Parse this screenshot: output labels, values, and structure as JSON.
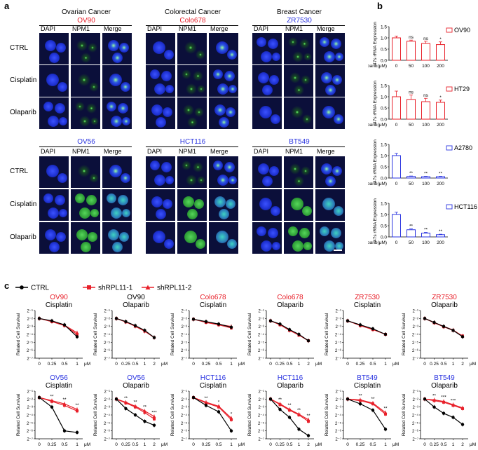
{
  "panels": {
    "a": "a",
    "b": "b",
    "c": "c"
  },
  "micro": {
    "col_headers": [
      "DAPI",
      "NPM1",
      "Merge"
    ],
    "top_groups": [
      {
        "cancer": "Ovarian Cancer",
        "line": "OV90",
        "color": "#e8202a"
      },
      {
        "cancer": "Colorectal Cancer",
        "line": "Colo678",
        "color": "#e8202a"
      },
      {
        "cancer": "Breast Cancer",
        "line": "ZR7530",
        "color": "#2a34e0"
      }
    ],
    "bottom_groups": [
      {
        "line": "OV56",
        "color": "#2a34e0"
      },
      {
        "line": "HCT116",
        "color": "#2a34e0"
      },
      {
        "line": "BT549",
        "color": "#2a34e0"
      }
    ],
    "rows": [
      "CTRL",
      "Cisplatin",
      "Olaparib"
    ]
  },
  "panel_b": {
    "ylabel": "47s rRNA Expression",
    "xlabel": "Olaparib(μM)",
    "categories": [
      "0",
      "50",
      "100",
      "200"
    ],
    "charts": [
      {
        "line": "OV90",
        "color": "#e8202a",
        "values": [
          1.0,
          0.85,
          0.75,
          0.7
        ],
        "errors": [
          0.08,
          0.05,
          0.1,
          0.12
        ],
        "sig": [
          "",
          "ns",
          "ns",
          "*"
        ]
      },
      {
        "line": "HT29",
        "color": "#e8202a",
        "values": [
          1.0,
          0.88,
          0.78,
          0.75
        ],
        "errors": [
          0.25,
          0.2,
          0.15,
          0.1
        ],
        "sig": [
          "",
          "ns",
          "ns",
          "*"
        ]
      },
      {
        "line": "A2780",
        "color": "#2a34e0",
        "values": [
          1.0,
          0.07,
          0.06,
          0.06
        ],
        "errors": [
          0.1,
          0.02,
          0.02,
          0.02
        ],
        "sig": [
          "",
          "**",
          "**",
          "**"
        ]
      },
      {
        "line": "HCT116",
        "color": "#2a34e0",
        "values": [
          1.0,
          0.32,
          0.17,
          0.1
        ],
        "errors": [
          0.1,
          0.04,
          0.03,
          0.02
        ],
        "sig": [
          "",
          "**",
          "**",
          "**"
        ]
      }
    ],
    "yticks": [
      "0.0",
      "0.5",
      "1.0",
      "1.5"
    ]
  },
  "panel_c": {
    "legend": [
      {
        "name": "CTRL",
        "color": "#000000",
        "marker": "circle"
      },
      {
        "name": "shRPL11-1",
        "color": "#e8202a",
        "marker": "square"
      },
      {
        "name": "shRPL11-2",
        "color": "#e8202a",
        "marker": "triangle"
      }
    ],
    "ylabel": "Related Cell Survival",
    "unit": "μM",
    "yticks": [
      "2⁻¹",
      "2⁻²",
      "2⁻³",
      "2⁻⁴",
      "2⁻⁵",
      "2⁻⁶",
      "2⁻⁷"
    ],
    "cis_x": [
      "0",
      "0.25",
      "0.5",
      "1"
    ],
    "ola_x": [
      "0",
      "0.25",
      "0.5",
      "1",
      "2"
    ],
    "plots": [
      {
        "line": "OV90",
        "drug": "Cisplatin",
        "color": "#e8202a",
        "x": "cis",
        "ctrl": [
          -2.0,
          -2.3,
          -2.8,
          -4.3
        ],
        "sh1": [
          -2.0,
          -2.4,
          -2.9,
          -4.0
        ],
        "sh2": [
          -2.0,
          -2.35,
          -2.85,
          -3.8
        ],
        "sig": []
      },
      {
        "line": "OV90",
        "drug": "Olaparib",
        "color": "#000000",
        "x": "ola",
        "ctrl": [
          -2.0,
          -2.4,
          -2.9,
          -3.5,
          -4.4
        ],
        "sh1": [
          -2.0,
          -2.45,
          -2.95,
          -3.6,
          -4.4
        ],
        "sh2": [
          -2.0,
          -2.4,
          -3.0,
          -3.6,
          -4.4
        ],
        "sig": []
      },
      {
        "line": "Colo678",
        "drug": "Cisplatin",
        "color": "#e8202a",
        "x": "cis",
        "ctrl": [
          -2.1,
          -2.4,
          -2.7,
          -3.1
        ],
        "sh1": [
          -2.1,
          -2.5,
          -2.8,
          -3.2
        ],
        "sh2": [
          -2.1,
          -2.45,
          -2.75,
          -3.0
        ],
        "sig": []
      },
      {
        "line": "Colo678",
        "drug": "Olaparib",
        "color": "#e8202a",
        "x": "ola",
        "ctrl": [
          -2.3,
          -2.7,
          -3.4,
          -4.0,
          -4.8
        ],
        "sh1": [
          -2.3,
          -2.8,
          -3.5,
          -4.1,
          -4.8
        ],
        "sh2": [
          -2.3,
          -2.75,
          -3.45,
          -4.05,
          -4.8
        ],
        "sig": []
      },
      {
        "line": "ZR7530",
        "drug": "Cisplatin",
        "color": "#e8202a",
        "x": "cis",
        "ctrl": [
          -2.3,
          -2.8,
          -3.3,
          -4.0
        ],
        "sh1": [
          -2.3,
          -2.9,
          -3.4,
          -4.0
        ],
        "sh2": [
          -2.3,
          -2.85,
          -3.35,
          -4.0
        ],
        "sig": []
      },
      {
        "line": "ZR7530",
        "drug": "Olaparib",
        "color": "#e8202a",
        "x": "ola",
        "ctrl": [
          -2.0,
          -2.5,
          -3.0,
          -3.5,
          -4.3
        ],
        "sh1": [
          -2.0,
          -2.55,
          -3.05,
          -3.5,
          -4.2
        ],
        "sh2": [
          -2.0,
          -2.5,
          -3.0,
          -3.45,
          -4.25
        ],
        "sig": []
      },
      {
        "line": "OV56",
        "drug": "Cisplatin",
        "color": "#2a34e0",
        "x": "cis",
        "ctrl": [
          -1.8,
          -3.0,
          -6.0,
          -6.2
        ],
        "sh1": [
          -1.8,
          -2.3,
          -2.8,
          -3.5
        ],
        "sh2": [
          -1.8,
          -2.2,
          -2.6,
          -3.3
        ],
        "sig": [
          "**",
          "**",
          "**"
        ]
      },
      {
        "line": "OV56",
        "drug": "Olaparib",
        "color": "#2a34e0",
        "x": "ola",
        "ctrl": [
          -2.0,
          -3.2,
          -4.0,
          -4.8,
          -5.3
        ],
        "sh1": [
          -2.0,
          -2.5,
          -3.0,
          -3.7,
          -4.5
        ],
        "sh2": [
          -2.0,
          -2.4,
          -2.9,
          -3.5,
          -4.2
        ],
        "sig": [
          "**",
          "**",
          "**",
          "***"
        ]
      },
      {
        "line": "HCT116",
        "drug": "Cisplatin",
        "color": "#2a34e0",
        "x": "cis",
        "ctrl": [
          -1.8,
          -2.8,
          -3.6,
          -6.0
        ],
        "sh1": [
          -1.8,
          -2.5,
          -3.0,
          -4.6
        ],
        "sh2": [
          -1.8,
          -2.4,
          -2.9,
          -4.4
        ],
        "sig": [
          "**",
          "*",
          "*"
        ]
      },
      {
        "line": "HCT116",
        "drug": "Olaparib",
        "color": "#2a34e0",
        "x": "ola",
        "ctrl": [
          -2.0,
          -3.3,
          -4.3,
          -5.8,
          -6.6
        ],
        "sh1": [
          -2.0,
          -2.7,
          -3.4,
          -4.0,
          -4.8
        ],
        "sh2": [
          -2.0,
          -2.6,
          -3.3,
          -3.9,
          -4.6
        ],
        "sig": [
          "**",
          "**",
          "**",
          "**"
        ]
      },
      {
        "line": "BT549",
        "drug": "Cisplatin",
        "color": "#2a34e0",
        "x": "cis",
        "ctrl": [
          -2.0,
          -2.6,
          -3.4,
          -5.8
        ],
        "sh1": [
          -2.0,
          -2.2,
          -2.6,
          -3.9
        ],
        "sh2": [
          -2.0,
          -2.1,
          -2.5,
          -3.7
        ],
        "sig": [
          "**",
          "**",
          "**"
        ]
      },
      {
        "line": "BT549",
        "drug": "Olaparib",
        "color": "#2a34e0",
        "x": "ola",
        "ctrl": [
          -2.0,
          -3.0,
          -3.8,
          -4.3,
          -5.2
        ],
        "sh1": [
          -2.0,
          -2.2,
          -2.4,
          -2.8,
          -3.2
        ],
        "sh2": [
          -2.0,
          -2.1,
          -2.3,
          -2.7,
          -3.1
        ],
        "sig": [
          "**",
          "***",
          "***"
        ]
      }
    ]
  }
}
